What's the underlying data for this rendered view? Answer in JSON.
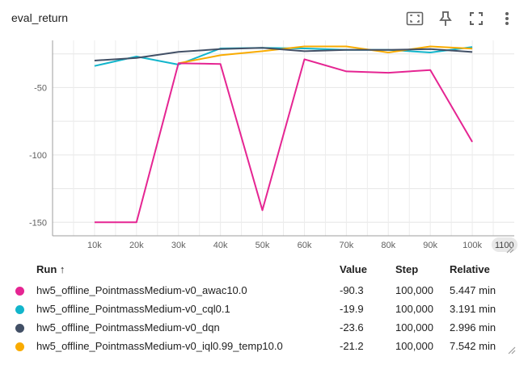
{
  "title": "eval_return",
  "toolbar": [
    {
      "name": "fit-domain-icon"
    },
    {
      "name": "pin-icon"
    },
    {
      "name": "fullscreen-icon"
    },
    {
      "name": "more-vert-icon"
    }
  ],
  "chart_data": {
    "type": "line",
    "x_ticks": [
      "10k",
      "20k",
      "30k",
      "40k",
      "50k",
      "60k",
      "70k",
      "80k",
      "90k",
      "100k"
    ],
    "x_overflow_tick": "1100",
    "y_ticks": [
      "-50",
      "-100",
      "-150"
    ],
    "xlim": [
      0,
      110000
    ],
    "ylim": [
      -160,
      -15
    ],
    "grid": true,
    "series": [
      {
        "name": "hw5_offline_PointmassMedium-v0_awac10.0",
        "color": "#e52592",
        "x": [
          10000,
          20000,
          30000,
          40000,
          50000,
          60000,
          70000,
          80000,
          90000,
          100000
        ],
        "y": [
          -150,
          -150,
          -32,
          -32.5,
          -141,
          -29,
          -38,
          -39,
          -37,
          -90.3
        ]
      },
      {
        "name": "hw5_offline_PointmassMedium-v0_cql0.1",
        "color": "#12b5cb",
        "x": [
          10000,
          20000,
          30000,
          40000,
          50000,
          60000,
          70000,
          80000,
          90000,
          100000
        ],
        "y": [
          -34,
          -27,
          -33,
          -21,
          -20.5,
          -21,
          -22,
          -22,
          -24,
          -19.9
        ]
      },
      {
        "name": "hw5_offline_PointmassMedium-v0_dqn",
        "color": "#425066",
        "x": [
          10000,
          20000,
          30000,
          40000,
          50000,
          60000,
          70000,
          80000,
          90000,
          100000
        ],
        "y": [
          -30,
          -28,
          -23.5,
          -21.5,
          -20.5,
          -23,
          -22,
          -22,
          -21.5,
          -23.6
        ]
      },
      {
        "name": "hw5_offline_PointmassMedium-v0_iql0.99_temp10.0",
        "color": "#f9ab00",
        "x": [
          30000,
          40000,
          50000,
          60000,
          70000,
          80000,
          90000,
          100000
        ],
        "y": [
          -32,
          -26,
          -23,
          -19.5,
          -19.5,
          -24,
          -19.5,
          -21.2
        ]
      }
    ]
  },
  "table": {
    "headers": {
      "run": "Run ↑",
      "value": "Value",
      "step": "Step",
      "relative": "Relative"
    },
    "rows": [
      {
        "run": "hw5_offline_PointmassMedium-v0_awac10.0",
        "value": "-90.3",
        "step": "100,000",
        "relative": "5.447 min",
        "color": "#e52592"
      },
      {
        "run": "hw5_offline_PointmassMedium-v0_cql0.1",
        "value": "-19.9",
        "step": "100,000",
        "relative": "3.191 min",
        "color": "#12b5cb"
      },
      {
        "run": "hw5_offline_PointmassMedium-v0_dqn",
        "value": "-23.6",
        "step": "100,000",
        "relative": "2.996 min",
        "color": "#425066"
      },
      {
        "run": "hw5_offline_PointmassMedium-v0_iql0.99_temp10.0",
        "value": "-21.2",
        "step": "100,000",
        "relative": "7.542 min",
        "color": "#f9ab00"
      }
    ]
  }
}
